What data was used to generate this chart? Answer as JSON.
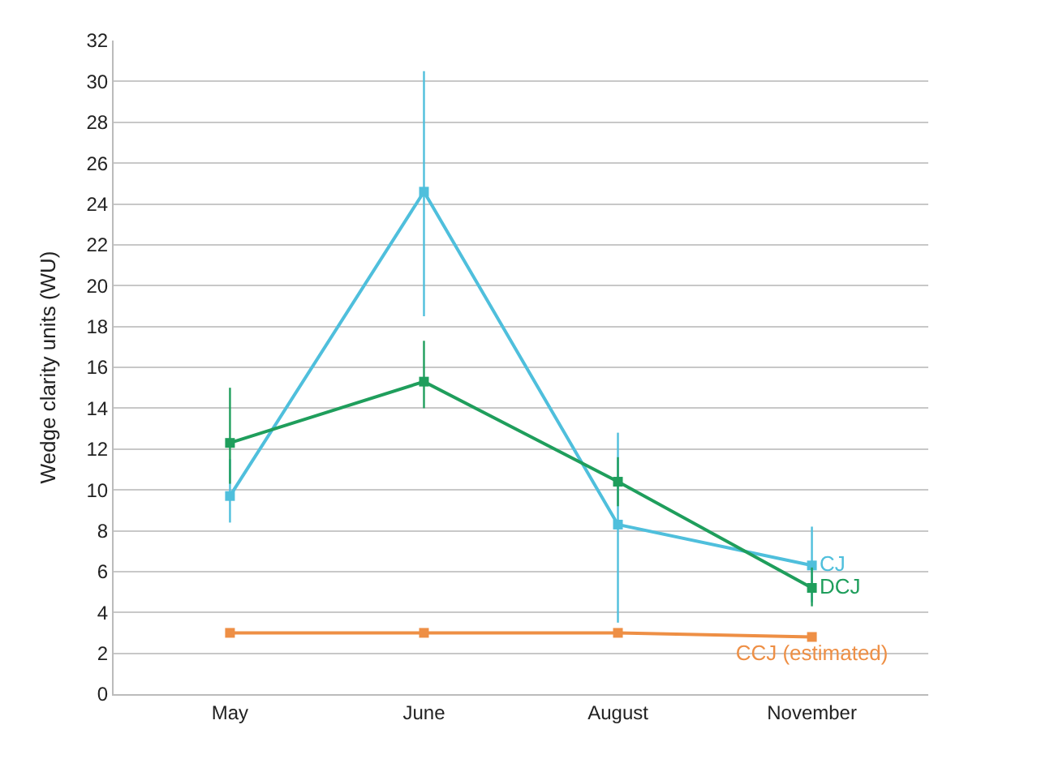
{
  "chart_data": {
    "type": "line",
    "ylabel": "Wedge clarity units (WU)",
    "categories": [
      "May",
      "June",
      "August",
      "November"
    ],
    "series": [
      {
        "name": "CJ",
        "color": "#4fbfdc",
        "values": [
          9.7,
          24.6,
          8.3,
          6.3
        ],
        "errors": [
          [
            8.4,
            11.5
          ],
          [
            18.5,
            30.5
          ],
          [
            3.5,
            12.8
          ],
          [
            4.5,
            8.2
          ]
        ]
      },
      {
        "name": "DCJ",
        "color": "#1f9e5c",
        "values": [
          12.3,
          15.3,
          10.4,
          5.2
        ],
        "errors": [
          [
            10.3,
            15.0
          ],
          [
            14.0,
            17.3
          ],
          [
            9.2,
            11.6
          ],
          [
            4.3,
            6.2
          ]
        ]
      },
      {
        "name": "CCJ (estimated)",
        "color": "#ee8f45",
        "values": [
          3.0,
          3.0,
          3.0,
          2.8
        ]
      }
    ],
    "ylim": [
      0,
      32
    ],
    "yticks": [
      0,
      2,
      4,
      6,
      8,
      10,
      12,
      14,
      16,
      18,
      20,
      22,
      24,
      26,
      28,
      30,
      32
    ],
    "grid": "y",
    "legend": "right",
    "marker": "square",
    "line_style": "solid"
  }
}
